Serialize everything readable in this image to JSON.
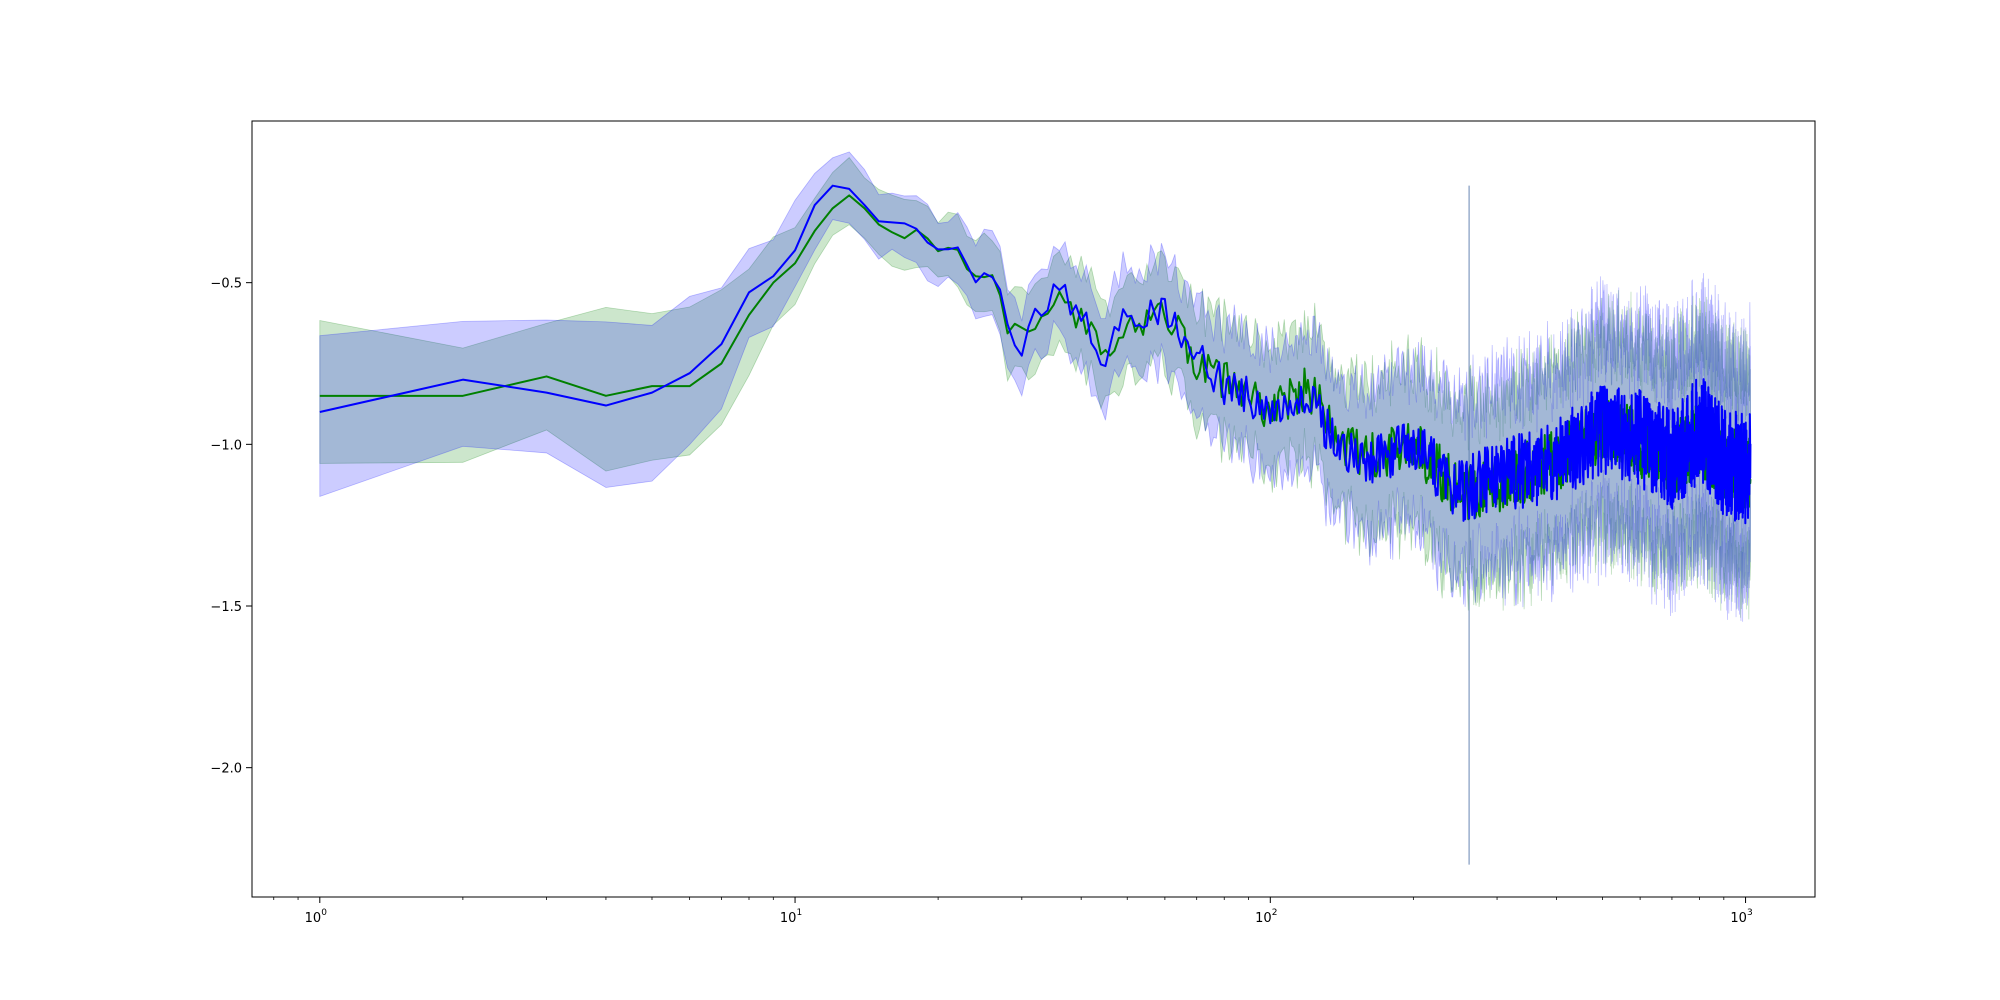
{
  "chart_data": {
    "type": "line",
    "title": "",
    "xlabel": "",
    "ylabel": "",
    "xscale": "log",
    "xlim": [
      0.72,
      1400
    ],
    "ylim": [
      -2.4,
      -0.0
    ],
    "grid": false,
    "legend": "none",
    "x_ticks": [
      {
        "value": 1,
        "base": "10",
        "exp": "0"
      },
      {
        "value": 10,
        "base": "10",
        "exp": "1"
      },
      {
        "value": 100,
        "base": "10",
        "exp": "2"
      },
      {
        "value": 1000,
        "base": "10",
        "exp": "3"
      }
    ],
    "y_ticks": [
      {
        "value": -0.5,
        "label": "−0.5"
      },
      {
        "value": -1.0,
        "label": "−1.0"
      },
      {
        "value": -1.5,
        "label": "−1.5"
      },
      {
        "value": -2.0,
        "label": "−2.0"
      }
    ],
    "series": [
      {
        "color": "#008000",
        "band_color": "#008000",
        "band_opacity": 0.2,
        "noise_seed": 7,
        "x": [
          1,
          2,
          3,
          4,
          5,
          6,
          7,
          8,
          9,
          10,
          11,
          12,
          13,
          14,
          15,
          17,
          18,
          20,
          22,
          24,
          26,
          28,
          30,
          33,
          36,
          40,
          45,
          50,
          55,
          60,
          70,
          80,
          90,
          100,
          120,
          140,
          160,
          200,
          250,
          300,
          400,
          500,
          600,
          700,
          800,
          900,
          1024
        ],
        "mean": [
          -0.85,
          -0.85,
          -0.79,
          -0.85,
          -0.82,
          -0.82,
          -0.75,
          -0.6,
          -0.5,
          -0.44,
          -0.34,
          -0.27,
          -0.23,
          -0.27,
          -0.32,
          -0.36,
          -0.33,
          -0.4,
          -0.4,
          -0.5,
          -0.5,
          -0.63,
          -0.66,
          -0.6,
          -0.55,
          -0.62,
          -0.72,
          -0.62,
          -0.62,
          -0.58,
          -0.75,
          -0.8,
          -0.85,
          -0.9,
          -0.82,
          -1.0,
          -1.05,
          -1.0,
          -1.15,
          -1.12,
          -1.05,
          -0.95,
          -1.0,
          -1.05,
          -0.98,
          -1.05,
          -1.1
        ],
        "spread": [
          0.2,
          0.18,
          0.2,
          0.23,
          0.22,
          0.22,
          0.2,
          0.17,
          0.15,
          0.13,
          0.12,
          0.1,
          0.1,
          0.1,
          0.1,
          0.1,
          0.1,
          0.1,
          0.1,
          0.11,
          0.12,
          0.13,
          0.13,
          0.13,
          0.14,
          0.14,
          0.15,
          0.15,
          0.15,
          0.16,
          0.17,
          0.18,
          0.18,
          0.19,
          0.2,
          0.21,
          0.22,
          0.24,
          0.26,
          0.27,
          0.28,
          0.29,
          0.3,
          0.3,
          0.3,
          0.3,
          0.3
        ],
        "noise": [
          0,
          0,
          0,
          0,
          0,
          0,
          0,
          0,
          0,
          0,
          0,
          0,
          0,
          0,
          0,
          0.01,
          0.01,
          0.02,
          0.02,
          0.03,
          0.03,
          0.03,
          0.04,
          0.04,
          0.04,
          0.04,
          0.04,
          0.05,
          0.05,
          0.05,
          0.05,
          0.06,
          0.06,
          0.06,
          0.07,
          0.07,
          0.08,
          0.08,
          0.09,
          0.09,
          0.1,
          0.1,
          0.11,
          0.11,
          0.12,
          0.12,
          0.12
        ]
      },
      {
        "color": "#0000ff",
        "band_color": "#0000ff",
        "band_opacity": 0.2,
        "noise_seed": 13,
        "x": [
          1,
          2,
          3,
          4,
          5,
          6,
          7,
          8,
          9,
          10,
          11,
          12,
          13,
          14,
          15,
          17,
          18,
          20,
          22,
          24,
          26,
          28,
          30,
          33,
          36,
          40,
          45,
          50,
          55,
          60,
          70,
          80,
          90,
          100,
          120,
          140,
          160,
          200,
          250,
          300,
          400,
          500,
          600,
          700,
          800,
          900,
          1024
        ],
        "mean": [
          -0.9,
          -0.8,
          -0.84,
          -0.88,
          -0.84,
          -0.78,
          -0.69,
          -0.53,
          -0.48,
          -0.4,
          -0.26,
          -0.2,
          -0.21,
          -0.26,
          -0.31,
          -0.31,
          -0.33,
          -0.41,
          -0.39,
          -0.52,
          -0.47,
          -0.63,
          -0.7,
          -0.58,
          -0.52,
          -0.6,
          -0.74,
          -0.58,
          -0.6,
          -0.58,
          -0.72,
          -0.82,
          -0.85,
          -0.9,
          -0.85,
          -1.02,
          -1.05,
          -1.0,
          -1.15,
          -1.1,
          -1.05,
          -0.95,
          -0.98,
          -1.05,
          -0.95,
          -1.05,
          -1.08
        ],
        "spread": [
          0.24,
          0.22,
          0.22,
          0.24,
          0.23,
          0.22,
          0.2,
          0.16,
          0.14,
          0.13,
          0.12,
          0.1,
          0.1,
          0.1,
          0.1,
          0.1,
          0.1,
          0.1,
          0.1,
          0.11,
          0.12,
          0.13,
          0.13,
          0.13,
          0.14,
          0.14,
          0.15,
          0.15,
          0.15,
          0.16,
          0.17,
          0.18,
          0.18,
          0.19,
          0.2,
          0.21,
          0.22,
          0.24,
          0.26,
          0.27,
          0.28,
          0.29,
          0.3,
          0.3,
          0.3,
          0.3,
          0.3
        ],
        "noise": [
          0,
          0,
          0,
          0,
          0,
          0,
          0,
          0,
          0,
          0,
          0,
          0,
          0,
          0,
          0,
          0.01,
          0.01,
          0.02,
          0.02,
          0.03,
          0.03,
          0.03,
          0.04,
          0.04,
          0.04,
          0.04,
          0.04,
          0.05,
          0.05,
          0.05,
          0.05,
          0.06,
          0.06,
          0.06,
          0.07,
          0.07,
          0.08,
          0.08,
          0.1,
          0.11,
          0.13,
          0.14,
          0.15,
          0.16,
          0.17,
          0.17,
          0.18
        ]
      }
    ],
    "annotations": [
      {
        "type": "spike",
        "x": 262,
        "y_top": -0.2,
        "y_bottom": -2.3,
        "color": "#6080b0"
      }
    ]
  }
}
